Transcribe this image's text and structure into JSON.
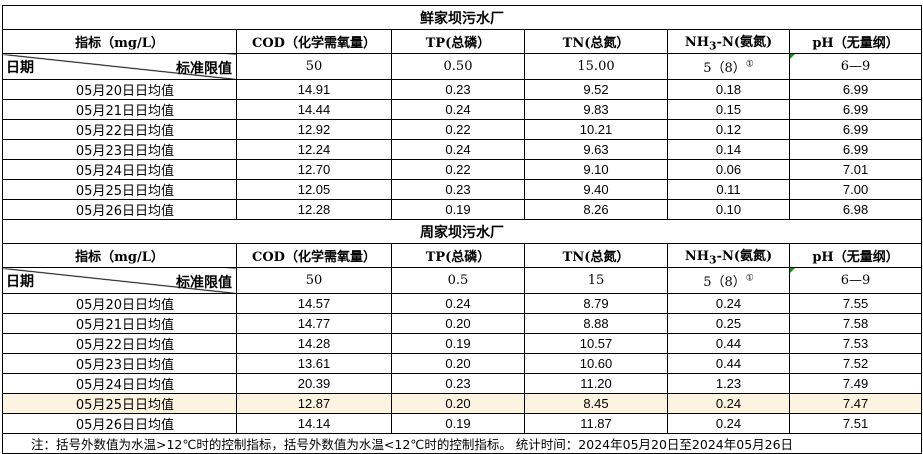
{
  "headers": {
    "indicator": "指标（mg/L）",
    "cod": "COD（化学需氧量）",
    "tp": "TP(总磷）",
    "tn": "TN(总氮）",
    "nh3_pre": "NH",
    "nh3_sub": "3",
    "nh3_post": "-N(氨氮)",
    "ph": "pH（无量纲）",
    "date": "日期",
    "std": "标准限值"
  },
  "plants": [
    {
      "name": "鲜家坝污水厂",
      "standard": {
        "cod": "50",
        "tp": "0.50",
        "tn": "15.00",
        "nh3": "5（8）",
        "nh3_note": "①",
        "ph": "6—9"
      },
      "rows": [
        [
          "05月20日日均值",
          "14.91",
          "0.23",
          "9.52",
          "0.18",
          "6.99"
        ],
        [
          "05月21日日均值",
          "14.44",
          "0.24",
          "9.83",
          "0.15",
          "6.99"
        ],
        [
          "05月22日日均值",
          "12.92",
          "0.22",
          "10.21",
          "0.12",
          "6.99"
        ],
        [
          "05月23日日均值",
          "12.24",
          "0.24",
          "9.63",
          "0.14",
          "6.99"
        ],
        [
          "05月24日日均值",
          "12.70",
          "0.22",
          "9.10",
          "0.06",
          "7.01"
        ],
        [
          "05月25日日均值",
          "12.05",
          "0.23",
          "9.40",
          "0.11",
          "7.00"
        ],
        [
          "05月26日日均值",
          "12.28",
          "0.19",
          "8.26",
          "0.10",
          "6.98"
        ]
      ]
    },
    {
      "name": "周家坝污水厂",
      "standard": {
        "cod": "50",
        "tp": "0.5",
        "tn": "15",
        "nh3": "5（8）",
        "nh3_note": "①",
        "ph": "6—9"
      },
      "rows": [
        [
          "05月20日日均值",
          "14.57",
          "0.24",
          "8.79",
          "0.24",
          "7.55"
        ],
        [
          "05月21日日均值",
          "14.77",
          "0.20",
          "8.88",
          "0.25",
          "7.58"
        ],
        [
          "05月22日日均值",
          "14.28",
          "0.19",
          "10.57",
          "0.44",
          "7.53"
        ],
        [
          "05月23日日均值",
          "13.61",
          "0.20",
          "10.60",
          "0.44",
          "7.52"
        ],
        [
          "05月24日日均值",
          "20.39",
          "0.23",
          "11.20",
          "1.23",
          "7.49"
        ],
        [
          "05月25日日均值",
          "12.87",
          "0.20",
          "8.45",
          "0.24",
          "7.47"
        ],
        [
          "05月26日日均值",
          "14.14",
          "0.19",
          "11.87",
          "0.24",
          "7.51"
        ]
      ]
    }
  ],
  "note": "注：括号外数值为水温>12℃时的控制指标，括号外数值为水温<12℃时的控制指标。   统计时间：2024年05月20日至2024年05月26日",
  "colors": {
    "highlight_row": "#fdf3e1",
    "comment_marker": "#1a8a1a"
  }
}
